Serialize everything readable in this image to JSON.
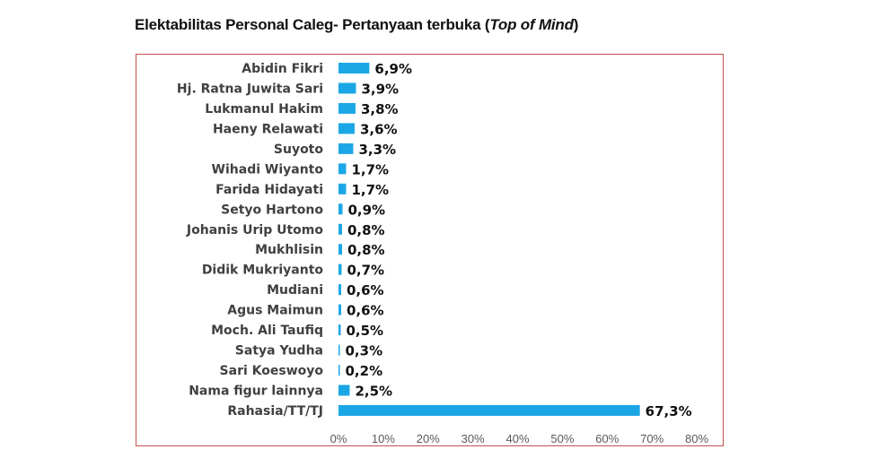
{
  "title": {
    "prefix": "Elektabilitas Personal Caleg- Pertanyaan terbuka (",
    "emphasis": "Top of Mind",
    "suffix": ")"
  },
  "chart_data": {
    "type": "bar",
    "orientation": "horizontal",
    "categories": [
      "Abidin Fikri",
      "Hj. Ratna Juwita Sari",
      "Lukmanul Hakim",
      "Haeny Relawati",
      "Suyoto",
      "Wihadi Wiyanto",
      "Farida Hidayati",
      "Setyo Hartono",
      "Johanis Urip Utomo",
      "Mukhlisin",
      "Didik Mukriyanto",
      "Mudiani",
      "Agus Maimun",
      "Moch. Ali Taufiq",
      "Satya Yudha",
      "Sari Koeswoyo",
      "Nama figur lainnya",
      "Rahasia/TT/TJ"
    ],
    "values": [
      6.9,
      3.9,
      3.8,
      3.6,
      3.3,
      1.7,
      1.7,
      0.9,
      0.8,
      0.8,
      0.7,
      0.6,
      0.6,
      0.5,
      0.3,
      0.2,
      2.5,
      67.3
    ],
    "value_labels": [
      "6,9%",
      "3,9%",
      "3,8%",
      "3,6%",
      "3,3%",
      "1,7%",
      "1,7%",
      "0,9%",
      "0,8%",
      "0,8%",
      "0,7%",
      "0,6%",
      "0,6%",
      "0,5%",
      "0,3%",
      "0,2%",
      "2,5%",
      "67,3%"
    ],
    "xlim": [
      0,
      80
    ],
    "xticks": [
      0,
      10,
      20,
      30,
      40,
      50,
      60,
      70,
      80
    ],
    "xtick_labels": [
      "0%",
      "10%",
      "20%",
      "30%",
      "40%",
      "50%",
      "60%",
      "70%",
      "80%"
    ],
    "bar_color": "#1ba7e6",
    "border_color": "#c0504d",
    "grid": false
  }
}
